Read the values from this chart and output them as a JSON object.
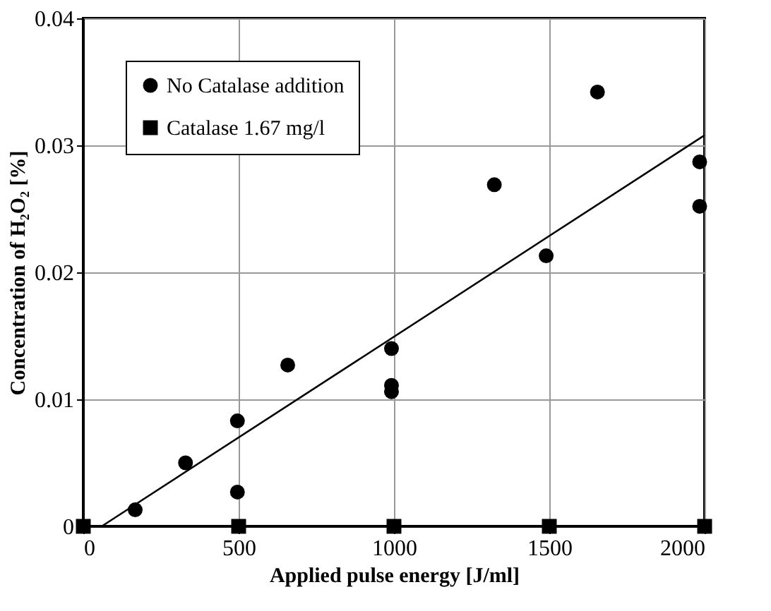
{
  "chart_data": {
    "type": "scatter",
    "xlabel": "Applied pulse energy [J/ml]",
    "ylabel": "Concentration of H₂O₂ [%]",
    "xlim": [
      0,
      2000
    ],
    "ylim": [
      0,
      0.04
    ],
    "xticks": [
      0,
      500,
      1000,
      1500,
      2000
    ],
    "yticks": [
      0,
      0.01,
      0.02,
      0.03,
      0.04
    ],
    "grid": true,
    "legend": "top left",
    "series": [
      {
        "name": "No Catalase addition",
        "color": "#000000",
        "marker": "circle",
        "x": [
          167,
          329,
          496,
          496,
          658,
          992,
          992,
          992,
          1323,
          1490,
          1655,
          1984,
          1984
        ],
        "values": [
          0.0013,
          0.005,
          0.0083,
          0.0027,
          0.0127,
          0.014,
          0.0111,
          0.0106,
          0.0269,
          0.0213,
          0.0342,
          0.0287,
          0.0252
        ]
      },
      {
        "name": "Catalase 1.67 mg/l",
        "color": "#000000",
        "marker": "square",
        "x": [
          0,
          500,
          1000,
          1500,
          2000
        ],
        "values": [
          0,
          0,
          0,
          0,
          0
        ]
      },
      {
        "type": "line",
        "color": "#000000",
        "x": [
          59,
          2000
        ],
        "values": [
          0,
          0.0308
        ]
      }
    ]
  }
}
